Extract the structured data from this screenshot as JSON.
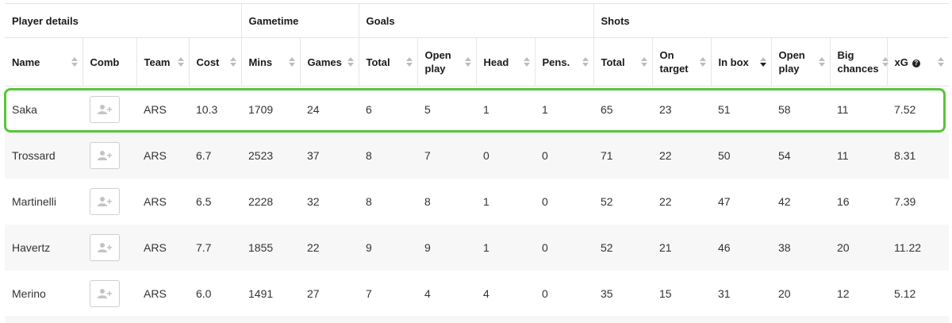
{
  "groups": {
    "player_details": "Player details",
    "gametime": "Gametime",
    "goals": "Goals",
    "shots": "Shots"
  },
  "columns": {
    "name": "Name",
    "comb": "Comb",
    "team": "Team",
    "cost": "Cost",
    "mins": "Mins",
    "games": "Games",
    "goals_total": "Total",
    "goals_open_play": "Open play",
    "head": "Head",
    "pens": "Pens.",
    "shots_total": "Total",
    "on_target": "On target",
    "in_box": "In box",
    "shots_open_play": "Open play",
    "big_chances": "Big chances",
    "xg": "xG"
  },
  "help_glyph": "?",
  "sorted_column": "in_box",
  "players": [
    {
      "name": "Saka",
      "team": "ARS",
      "cost": "10.3",
      "mins": "1709",
      "games": "24",
      "goals_total": "6",
      "goals_open_play": "5",
      "head": "1",
      "pens": "1",
      "shots_total": "65",
      "on_target": "23",
      "in_box": "51",
      "shots_open_play": "58",
      "big_chances": "11",
      "xg": "7.52"
    },
    {
      "name": "Trossard",
      "team": "ARS",
      "cost": "6.7",
      "mins": "2523",
      "games": "37",
      "goals_total": "8",
      "goals_open_play": "7",
      "head": "0",
      "pens": "0",
      "shots_total": "71",
      "on_target": "22",
      "in_box": "50",
      "shots_open_play": "54",
      "big_chances": "11",
      "xg": "8.31"
    },
    {
      "name": "Martinelli",
      "team": "ARS",
      "cost": "6.5",
      "mins": "2228",
      "games": "32",
      "goals_total": "8",
      "goals_open_play": "8",
      "head": "1",
      "pens": "0",
      "shots_total": "52",
      "on_target": "22",
      "in_box": "47",
      "shots_open_play": "42",
      "big_chances": "16",
      "xg": "7.39"
    },
    {
      "name": "Havertz",
      "team": "ARS",
      "cost": "7.7",
      "mins": "1855",
      "games": "22",
      "goals_total": "9",
      "goals_open_play": "9",
      "head": "1",
      "pens": "0",
      "shots_total": "52",
      "on_target": "21",
      "in_box": "46",
      "shots_open_play": "38",
      "big_chances": "20",
      "xg": "11.22"
    },
    {
      "name": "Merino",
      "team": "ARS",
      "cost": "6.0",
      "mins": "1491",
      "games": "27",
      "goals_total": "7",
      "goals_open_play": "4",
      "head": "4",
      "pens": "0",
      "shots_total": "35",
      "on_target": "15",
      "in_box": "31",
      "shots_open_play": "20",
      "big_chances": "12",
      "xg": "5.12"
    }
  ],
  "colors": {
    "highlight": "#57c63a",
    "border": "#e6e6e6",
    "stripe": "#f7f7f7"
  }
}
